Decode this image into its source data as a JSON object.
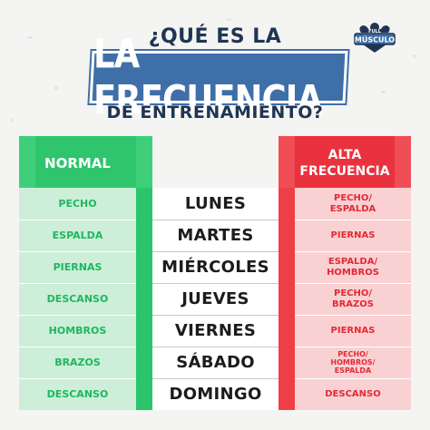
{
  "title": {
    "line1": "¿QUÉ ES LA",
    "line2": "LA FRECUENCIA",
    "line3": "DE ENTRENAMIENTO?"
  },
  "logo": {
    "line1": "FULL",
    "line2": "MÚSCULO",
    "icon": "muscle-man-icon"
  },
  "columns": {
    "normal": "NORMAL",
    "alta_line1": "ALTA",
    "alta_line2": "FRECUENCIA"
  },
  "colors": {
    "green": "#2ec56d",
    "red": "#e9323d",
    "navy": "#1f3553",
    "banner": "#3f6fa8"
  },
  "rows": [
    {
      "normal": "PECHO",
      "day": "LUNES",
      "alta": [
        "PECHO/",
        "ESPALDA"
      ]
    },
    {
      "normal": "ESPALDA",
      "day": "MARTES",
      "alta": [
        "PIERNAS"
      ]
    },
    {
      "normal": "PIERNAS",
      "day": "MIÉRCOLES",
      "alta": [
        "ESPALDA/",
        "HOMBROS"
      ]
    },
    {
      "normal": "DESCANSO",
      "day": "JUEVES",
      "alta": [
        "PECHO/",
        "BRAZOS"
      ]
    },
    {
      "normal": "HOMBROS",
      "day": "VIERNES",
      "alta": [
        "PIERNAS"
      ]
    },
    {
      "normal": "BRAZOS",
      "day": "SÁBADO",
      "alta": [
        "PECHO/",
        "HOMBROS/",
        "ESPALDA"
      ]
    },
    {
      "normal": "DESCANSO",
      "day": "DOMINGO",
      "alta": [
        "DESCANSO"
      ]
    }
  ]
}
